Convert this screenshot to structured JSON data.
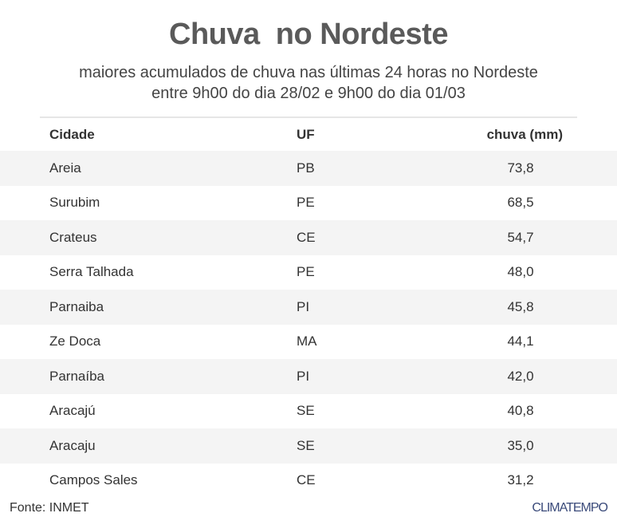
{
  "title": "Chuva  no Nordeste",
  "subtitle_line1": "maiores acumulados de chuva nas últimas 24 horas no Nordeste",
  "subtitle_line2": "entre 9h00 do dia 28/02 e 9h00 do dia 01/03",
  "source": "Fonte: INMET",
  "logo": "CLIMATEMPO",
  "chart_data": {
    "type": "table",
    "columns": [
      "Cidade",
      "UF",
      "chuva (mm)"
    ],
    "rows": [
      [
        "Areia",
        "PB",
        "73,8"
      ],
      [
        "Surubim",
        "PE",
        "68,5"
      ],
      [
        "Crateus",
        "CE",
        "54,7"
      ],
      [
        "Serra Talhada",
        "PE",
        "48,0"
      ],
      [
        "Parnaiba",
        "PI",
        "45,8"
      ],
      [
        "Ze Doca",
        "MA",
        "44,1"
      ],
      [
        "Parnaíba",
        "PI",
        "42,0"
      ],
      [
        "Aracajú",
        "SE",
        "40,8"
      ],
      [
        "Aracaju",
        "SE",
        "35,0"
      ],
      [
        "Campos Sales",
        "CE",
        "31,2"
      ]
    ]
  }
}
